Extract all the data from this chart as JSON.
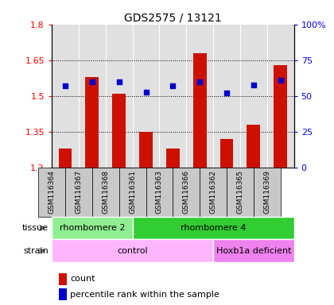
{
  "title": "GDS2575 / 13121",
  "samples": [
    "GSM116364",
    "GSM116367",
    "GSM116368",
    "GSM116361",
    "GSM116363",
    "GSM116366",
    "GSM116362",
    "GSM116365",
    "GSM116369"
  ],
  "counts": [
    1.28,
    1.58,
    1.51,
    1.35,
    1.28,
    1.68,
    1.32,
    1.38,
    1.63
  ],
  "percentiles": [
    57,
    60,
    60,
    53,
    57,
    60,
    52,
    58,
    61
  ],
  "ylim_left": [
    1.2,
    1.8
  ],
  "ylim_right": [
    0,
    100
  ],
  "yticks_left": [
    1.2,
    1.35,
    1.5,
    1.65,
    1.8
  ],
  "yticks_right": [
    0,
    25,
    50,
    75,
    100
  ],
  "ytick_labels_left": [
    "1.2",
    "1.35",
    "1.5",
    "1.65",
    "1.8"
  ],
  "ytick_labels_right": [
    "0",
    "25",
    "50",
    "75",
    "100%"
  ],
  "tissue_groups": [
    {
      "label": "rhombomere 2",
      "start": 0,
      "end": 3,
      "color": "#90EE90"
    },
    {
      "label": "rhombomere 4",
      "start": 3,
      "end": 9,
      "color": "#32CD32"
    }
  ],
  "strain_groups": [
    {
      "label": "control",
      "start": 0,
      "end": 6,
      "color": "#FFB6FF"
    },
    {
      "label": "Hoxb1a deficient",
      "start": 6,
      "end": 9,
      "color": "#EE82EE"
    }
  ],
  "bar_color": "#CC1100",
  "dot_color": "#0000CC",
  "bar_bottom": 1.2,
  "plot_bg": "#E0E0E0",
  "sample_box_bg": "#C8C8C8",
  "legend_items": [
    "count",
    "percentile rank within the sample"
  ]
}
